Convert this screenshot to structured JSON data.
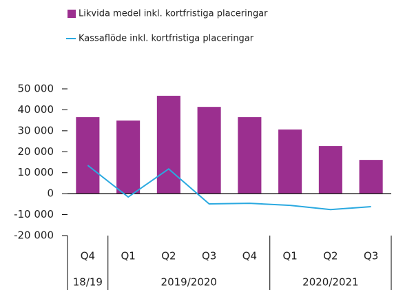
{
  "chart_data": {
    "type": "bar",
    "categories": [
      "Q4",
      "Q1",
      "Q2",
      "Q3",
      "Q4",
      "Q1",
      "Q2",
      "Q3"
    ],
    "groups": [
      {
        "label": "18/19",
        "size": 1
      },
      {
        "label": "2019/2020",
        "size": 4
      },
      {
        "label": "2020/2021",
        "size": 3
      }
    ],
    "series": [
      {
        "name": "Likvida medel inkl. kortfristiga placeringar",
        "type": "bar",
        "color": "#9b2f8f",
        "values": [
          36500,
          34900,
          46700,
          41400,
          36500,
          30600,
          22700,
          16100
        ]
      },
      {
        "name": "Kassaflöde inkl. kortfristiga placeringar",
        "type": "line",
        "color": "#2aa9e0",
        "values": [
          13500,
          -1600,
          11800,
          -4900,
          -4600,
          -5600,
          -7600,
          -6200
        ]
      }
    ],
    "ylim": [
      -20000,
      50000
    ],
    "yticks": [
      {
        "value": -20000,
        "label": "-20 000"
      },
      {
        "value": -10000,
        "label": "-10 000"
      },
      0,
      {
        "value": 10000,
        "label": "10 000"
      },
      {
        "value": 20000,
        "label": "20 000"
      },
      {
        "value": 30000,
        "label": "30 000"
      },
      {
        "value": 40000,
        "label": "40 000"
      },
      {
        "value": 50000,
        "label": "50 000"
      }
    ],
    "grid": false,
    "legend": "top-left"
  }
}
